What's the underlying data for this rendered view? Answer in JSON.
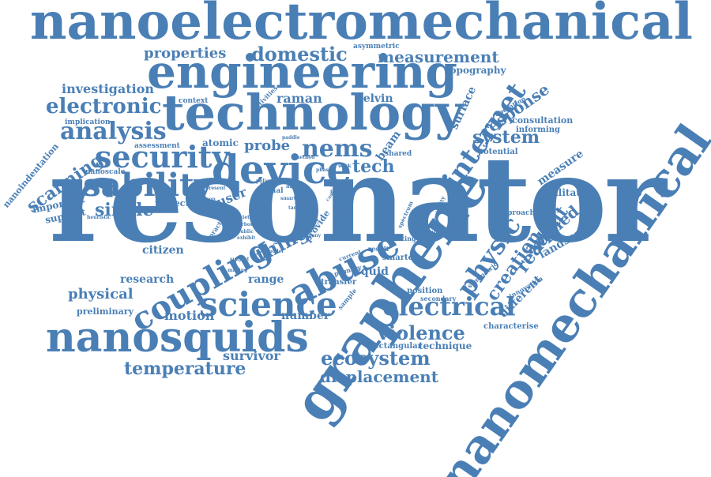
{
  "accent_color": "#4a7fb5",
  "words": [
    {
      "text": "nanoelectromechanical"
    },
    {
      "text": "engineering"
    },
    {
      "text": "technology"
    },
    {
      "text": "resonator"
    },
    {
      "text": "nanomechanical"
    },
    {
      "text": "graphene"
    },
    {
      "text": "nanosquids"
    },
    {
      "text": "device"
    },
    {
      "text": "science"
    },
    {
      "text": "usability"
    },
    {
      "text": "security"
    },
    {
      "text": "analysis"
    },
    {
      "text": "electronic"
    },
    {
      "text": "coupling"
    },
    {
      "text": "abuse"
    },
    {
      "text": "electrical"
    },
    {
      "text": "internet"
    },
    {
      "text": "physic"
    },
    {
      "text": "nems"
    },
    {
      "text": "ecosystem"
    },
    {
      "text": "violence"
    },
    {
      "text": "temperature"
    },
    {
      "text": "displacement"
    },
    {
      "text": "domestic"
    },
    {
      "text": "measurement"
    },
    {
      "text": "properties"
    },
    {
      "text": "investigation"
    },
    {
      "text": "scanning"
    },
    {
      "text": "system"
    },
    {
      "text": "response"
    },
    {
      "text": "creation"
    },
    {
      "text": "readout"
    },
    {
      "text": "applied"
    },
    {
      "text": "tech"
    },
    {
      "text": "probe"
    },
    {
      "text": "raman"
    },
    {
      "text": "kelvin"
    },
    {
      "text": "topography"
    },
    {
      "text": "thing"
    },
    {
      "text": "single"
    },
    {
      "text": "user"
    },
    {
      "text": "physical"
    },
    {
      "text": "motion"
    },
    {
      "text": "survivor"
    },
    {
      "text": "number"
    },
    {
      "text": "range"
    },
    {
      "text": "squid"
    },
    {
      "text": "research"
    },
    {
      "text": "citizen"
    },
    {
      "text": "different"
    },
    {
      "text": "landscape"
    },
    {
      "text": "measure"
    },
    {
      "text": "facilitated"
    },
    {
      "text": "technique"
    },
    {
      "text": "characterise"
    },
    {
      "text": "rectangular"
    },
    {
      "text": "preliminary"
    },
    {
      "text": "project"
    },
    {
      "text": "support"
    },
    {
      "text": "important"
    },
    {
      "text": "atomic"
    },
    {
      "text": "surface"
    },
    {
      "text": "beam"
    },
    {
      "text": "nanoindentation"
    },
    {
      "text": "consultation"
    },
    {
      "text": "informing"
    },
    {
      "text": "operation"
    },
    {
      "text": "asymmetric"
    },
    {
      "text": "context"
    },
    {
      "text": "implication"
    },
    {
      "text": "assessment"
    },
    {
      "text": "nanoscale"
    },
    {
      "text": "activities"
    },
    {
      "text": "potential"
    },
    {
      "text": "shared"
    },
    {
      "text": "approach"
    },
    {
      "text": "position"
    },
    {
      "text": "secondary"
    },
    {
      "text": "transfer"
    },
    {
      "text": "smarter"
    },
    {
      "text": "innovation"
    },
    {
      "text": "symmetric"
    },
    {
      "text": "primary"
    },
    {
      "text": "sample"
    },
    {
      "text": "result"
    },
    {
      "text": "getting"
    },
    {
      "text": "change"
    },
    {
      "text": "current"
    },
    {
      "text": "provide"
    },
    {
      "text": "spectrum"
    },
    {
      "text": "sensitivity"
    },
    {
      "text": "layer"
    },
    {
      "text": "signal"
    },
    {
      "text": "area"
    },
    {
      "text": "practice"
    },
    {
      "text": "carbon"
    },
    {
      "text": "public"
    },
    {
      "text": "exhibit"
    },
    {
      "text": "subject"
    },
    {
      "text": "making"
    },
    {
      "text": "society"
    },
    {
      "text": "person"
    },
    {
      "text": "present"
    },
    {
      "text": "problem"
    },
    {
      "text": "heuristic"
    },
    {
      "text": "paddle"
    },
    {
      "text": "method"
    },
    {
      "text": "policy"
    },
    {
      "text": "mode"
    },
    {
      "text": "smart"
    },
    {
      "text": "task"
    },
    {
      "text": "level"
    },
    {
      "text": "model"
    },
    {
      "text": "design"
    },
    {
      "text": "many"
    },
    {
      "text": "region"
    },
    {
      "text": "force"
    },
    {
      "text": "case"
    },
    {
      "text": "work"
    },
    {
      "text": "phase"
    },
    {
      "text": "typical"
    }
  ]
}
